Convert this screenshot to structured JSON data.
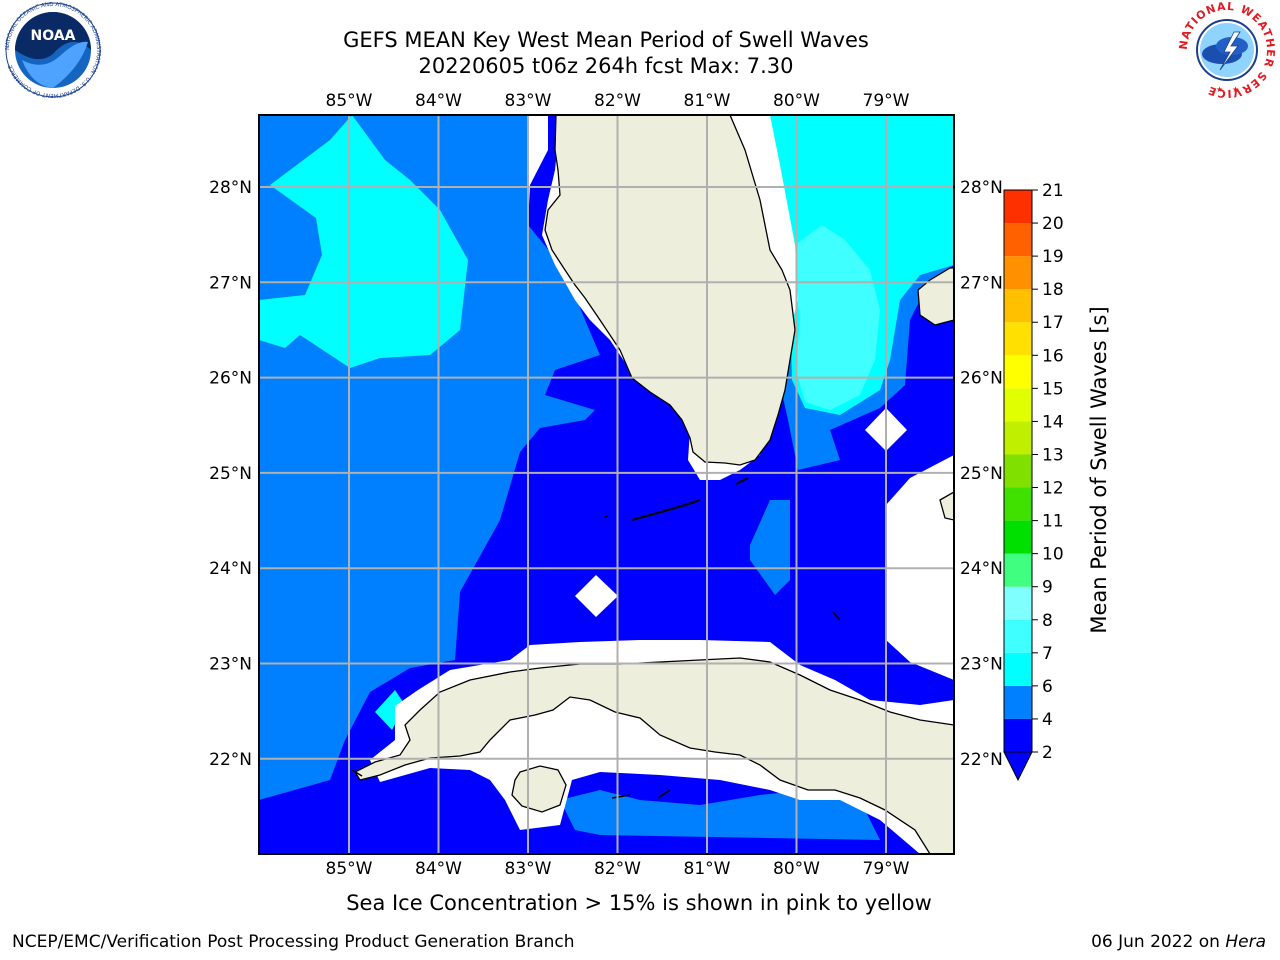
{
  "header": {
    "title_line1": "GEFS MEAN Key West Mean Period of Swell Waves",
    "title_line2": "20220605 t06z 264h fcst   Max: 7.30"
  },
  "map": {
    "lon_labels": [
      "85°W",
      "84°W",
      "83°W",
      "82°W",
      "81°W",
      "80°W",
      "79°W"
    ],
    "lat_labels": [
      "28°N",
      "27°N",
      "26°N",
      "25°N",
      "24°N",
      "23°N",
      "22°N"
    ],
    "colors": {
      "land": "#eeeedd",
      "band_2_4": "#0000ff",
      "band_4_6": "#0080ff",
      "band_6_7": "#00ffff",
      "band_7_8": "#40ffff",
      "grid": "#b0b0b0"
    }
  },
  "colorbar": {
    "label": "Mean Period of Swell Waves [s]",
    "ticks": [
      "2",
      "4",
      "6",
      "7",
      "8",
      "9",
      "10",
      "11",
      "12",
      "13",
      "14",
      "15",
      "16",
      "17",
      "18",
      "19",
      "20",
      "21"
    ],
    "colors": [
      "#0000ff",
      "#0080ff",
      "#00ffff",
      "#40ffff",
      "#80ffff",
      "#40ff80",
      "#00e000",
      "#40e000",
      "#80e000",
      "#c0f000",
      "#e0ff00",
      "#ffff00",
      "#ffe000",
      "#ffc000",
      "#ff9000",
      "#ff6000",
      "#ff3000",
      "#ff0000"
    ]
  },
  "caption": "Sea Ice Concentration > 15% is shown in pink to yellow",
  "footer": {
    "left": "NCEP/EMC/Verification Post Processing Product Generation Branch",
    "date": "06 Jun 2022 on ",
    "machine": "Hera"
  },
  "logos": {
    "noaa_text": "NOAA",
    "noaa_ring": "NATIONAL OCEANIC AND ATMOSPHERIC ADMINISTRATION · U.S. DEPARTMENT OF COMMERCE",
    "nws_ring": "NATIONAL WEATHER SERVICE"
  }
}
